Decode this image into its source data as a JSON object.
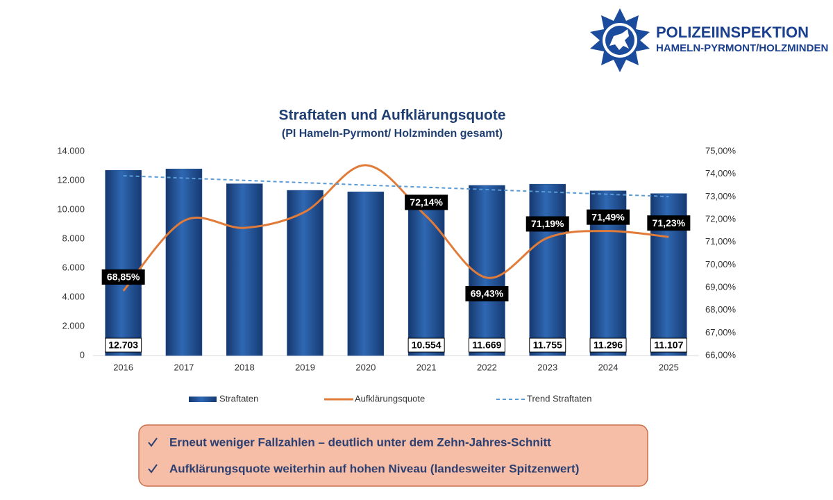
{
  "header": {
    "title": "POLIZEIINSPEKTION",
    "subtitle": "HAMELN-PYRMONT/HOLZMINDEN"
  },
  "chart_data": {
    "type": "bar",
    "title": "Straftaten und Aufklärungsquote",
    "subtitle": "(PI Hameln-Pyrmont/ Holzminden gesamt)",
    "categories": [
      "2016",
      "2017",
      "2018",
      "2019",
      "2020",
      "2021",
      "2022",
      "2023",
      "2024",
      "2025"
    ],
    "series": [
      {
        "name": "Straftaten",
        "type": "bar",
        "color": "#1f4e8f",
        "values": [
          12703,
          12800,
          11780,
          11330,
          11230,
          10554,
          11669,
          11755,
          11296,
          11107
        ],
        "value_labels": [
          "12.703",
          null,
          null,
          null,
          null,
          "10.554",
          "11.669",
          "11.755",
          "11.296",
          "11.107"
        ]
      },
      {
        "name": "Aufklärungsquote",
        "type": "line",
        "axis": "y2",
        "color": "#e07b39",
        "values": [
          68.85,
          71.94,
          71.63,
          72.34,
          74.39,
          72.14,
          69.43,
          71.19,
          71.49,
          71.23
        ],
        "value_labels": [
          "68,85%",
          null,
          null,
          null,
          null,
          "72,14%",
          "69,43%",
          "71,19%",
          "71,49%",
          "71,23%"
        ]
      },
      {
        "name": "Trend Straftaten",
        "type": "trend",
        "color": "#5b9bd5",
        "values": [
          12330,
          12170,
          12010,
          11850,
          11690,
          11540,
          11380,
          11220,
          11060,
          10900
        ]
      }
    ],
    "ylim": [
      0,
      14000
    ],
    "yticks": [
      0,
      {
        "value": 2000,
        "label": "2.000"
      },
      {
        "value": 4000,
        "label": "4.000"
      },
      {
        "value": 6000,
        "label": "6.000"
      },
      {
        "value": 8000,
        "label": "8.000"
      },
      {
        "value": 10000,
        "label": "10.000"
      },
      {
        "value": 12000,
        "label": "12.000"
      },
      {
        "value": 14000,
        "label": "14.000"
      }
    ],
    "y2lim": [
      66,
      75
    ],
    "y2ticks": [
      {
        "value": 66,
        "label": "66,00%"
      },
      {
        "value": 67,
        "label": "67,00%"
      },
      {
        "value": 68,
        "label": "68,00%"
      },
      {
        "value": 69,
        "label": "69,00%"
      },
      {
        "value": 70,
        "label": "70,00%"
      },
      {
        "value": 71,
        "label": "71,00%"
      },
      {
        "value": 72,
        "label": "72,00%"
      },
      {
        "value": 73,
        "label": "73,00%"
      },
      {
        "value": 74,
        "label": "74,00%"
      },
      {
        "value": 75,
        "label": "75,00%"
      }
    ],
    "legend": "bottom",
    "grid": false
  },
  "notes": [
    "Erneut weniger Fallzahlen – deutlich unter dem Zehn-Jahres-Schnitt",
    "Aufklärungsquote weiterhin auf hohen Niveau (landesweiter Spitzenwert)"
  ]
}
